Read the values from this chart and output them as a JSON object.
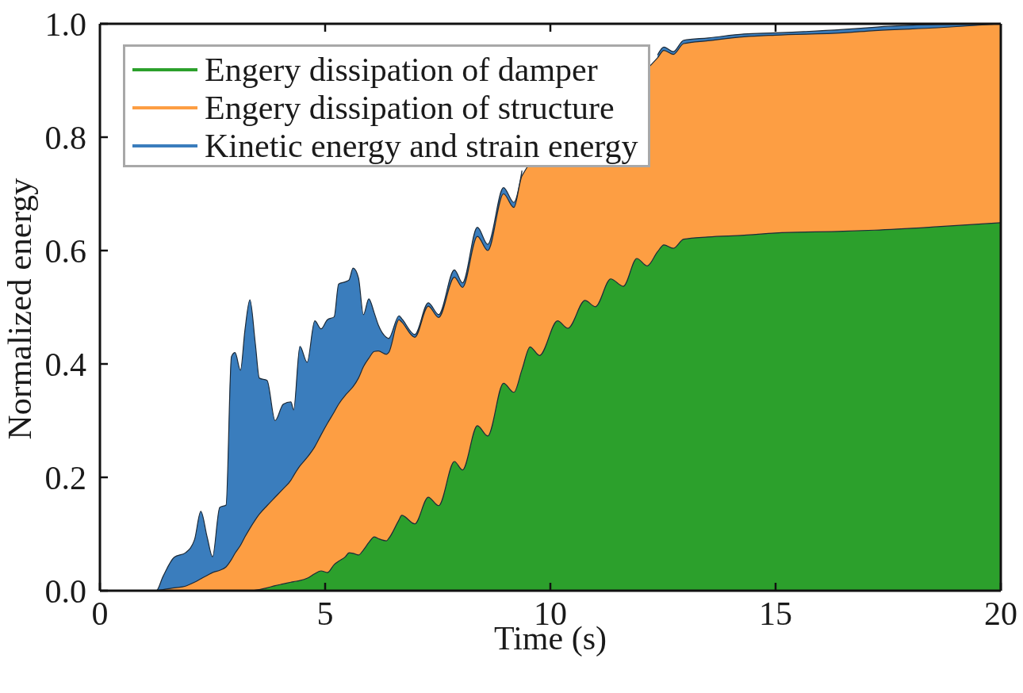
{
  "chart_data": {
    "type": "area",
    "stacked": true,
    "xlabel": "Time (s)",
    "ylabel": "Normalized energy",
    "legend": "top left",
    "xlim": [
      0,
      20
    ],
    "ylim": [
      0,
      1
    ],
    "xticks": [
      0,
      5,
      10,
      15,
      20
    ],
    "yticks": [
      {
        "value": 0,
        "label": "0.0"
      },
      0.2,
      0.4,
      0.6,
      0.8,
      {
        "value": 1,
        "label": "1.0"
      }
    ],
    "x": [
      0,
      1,
      1.25,
      1.4,
      1.65,
      1.9,
      2.1,
      2.24,
      2.38,
      2.5,
      2.66,
      2.8,
      2.92,
      3,
      3.12,
      3.22,
      3.33,
      3.45,
      3.54,
      3.71,
      3.89,
      4.07,
      4.24,
      4.3,
      4.44,
      4.6,
      4.77,
      4.91,
      5.05,
      5.2,
      5.3,
      5.45,
      5.53,
      5.62,
      5.74,
      5.85,
      5.97,
      6.09,
      6.18,
      6.36,
      6.41,
      6.64,
      6.7,
      6.99,
      7.29,
      7.52,
      7.87,
      8.05,
      8.38,
      8.61,
      8.96,
      9.19,
      9.37,
      9.55,
      9.76,
      10.16,
      10.39,
      10.77,
      11,
      11.34,
      11.62,
      11.92,
      12.15,
      12.38,
      12.52,
      12.73,
      12.96,
      13.5,
      14.3,
      15,
      16.5,
      17.2,
      18.6,
      20
    ],
    "series": [
      {
        "name": "Engery dissipation of damper",
        "color": "#2ca02c",
        "values": [
          0,
          0,
          0,
          0,
          0,
          0,
          0,
          0,
          0,
          0,
          0,
          0,
          0,
          0,
          0,
          0,
          0,
          0.001,
          0.002,
          0.005,
          0.009,
          0.012,
          0.015,
          0.016,
          0.018,
          0.022,
          0.03,
          0.035,
          0.032,
          0.046,
          0.052,
          0.06,
          0.067,
          0.066,
          0.063,
          0.072,
          0.085,
          0.095,
          0.092,
          0.088,
          0.092,
          0.125,
          0.133,
          0.118,
          0.165,
          0.15,
          0.228,
          0.213,
          0.291,
          0.273,
          0.366,
          0.35,
          0.39,
          0.43,
          0.415,
          0.476,
          0.463,
          0.512,
          0.501,
          0.55,
          0.537,
          0.586,
          0.573,
          0.598,
          0.61,
          0.604,
          0.62,
          0.624,
          0.627,
          0.631,
          0.634,
          0.636,
          0.642,
          0.649
        ]
      },
      {
        "name": "Engery dissipation of structure",
        "color": "#fd9e43",
        "values": [
          0,
          0,
          0,
          0.002,
          0.005,
          0.008,
          0.015,
          0.021,
          0.027,
          0.032,
          0.036,
          0.042,
          0.055,
          0.066,
          0.08,
          0.095,
          0.11,
          0.124,
          0.133,
          0.145,
          0.156,
          0.168,
          0.18,
          0.187,
          0.202,
          0.213,
          0.224,
          0.24,
          0.263,
          0.269,
          0.277,
          0.285,
          0.285,
          0.294,
          0.312,
          0.323,
          0.325,
          0.327,
          0.331,
          0.329,
          0.328,
          0.353,
          0.341,
          0.329,
          0.337,
          0.332,
          0.325,
          0.322,
          0.334,
          0.327,
          0.334,
          0.326,
          0.342,
          null,
          null,
          null,
          null,
          null,
          null,
          null,
          null,
          null,
          null,
          0.342,
          0.343,
          0.342,
          0.345,
          0.346,
          0.35,
          0.349,
          0.35,
          0.352,
          0.351,
          0.351
        ]
      },
      {
        "name": "Kinetic energy and strain energy",
        "color": "#3a7dbd",
        "values": [
          0,
          0,
          0,
          0.023,
          0.054,
          0.059,
          0.075,
          0.119,
          0.068,
          0.028,
          0.111,
          0.109,
          0.358,
          0.354,
          0.309,
          0.365,
          0.403,
          0.311,
          0.24,
          0.221,
          0.135,
          0.149,
          0.138,
          0.116,
          0.211,
          0.168,
          0.222,
          0.187,
          0.183,
          0.168,
          0.212,
          0.2,
          0.196,
          0.209,
          0.177,
          0.092,
          0.105,
          0.068,
          0.046,
          0.03,
          0.025,
          0.007,
          0.006,
          0.005,
          0.006,
          0.005,
          0.013,
          0.008,
          0.016,
          0.011,
          0.011,
          0.009,
          0.009,
          null,
          null,
          null,
          null,
          null,
          null,
          null,
          null,
          null,
          null,
          0.005,
          0.006,
          0.005,
          0.006,
          0.005,
          0.005,
          0.004,
          0.006,
          0.006,
          0.006,
          0
        ]
      }
    ]
  }
}
